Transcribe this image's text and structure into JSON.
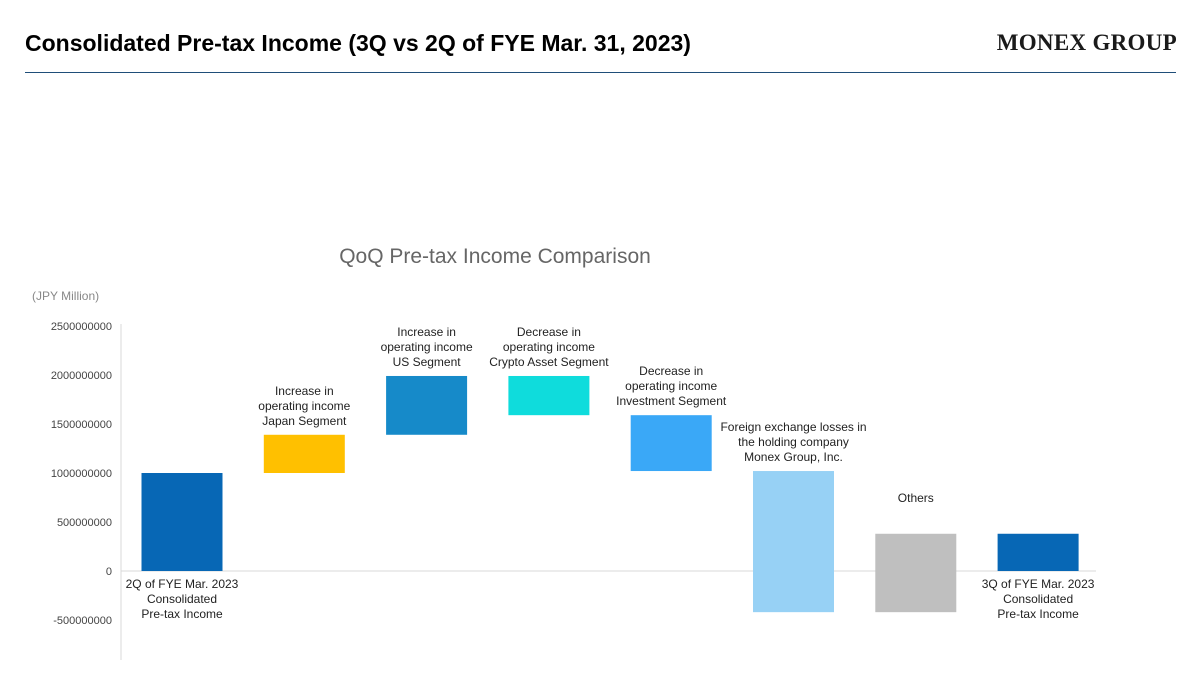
{
  "header": {
    "title": "Consolidated Pre-tax Income (3Q vs 2Q of FYE Mar. 31, 2023)",
    "logo_text": "MONEX GROUP"
  },
  "colors": {
    "rule": "#1f4e79",
    "title_gray": "#666666",
    "axis_text": "#444444",
    "label_text": "#222222"
  },
  "chart_data": {
    "type": "bar",
    "subtype": "waterfall",
    "title": "QoQ Pre-tax Income Comparison",
    "unit_label": "(JPY Million)",
    "ylim": [
      -900000000,
      2500000000
    ],
    "yticks": [
      2500000000,
      2000000000,
      1500000000,
      1000000000,
      500000000,
      0,
      -500000000
    ],
    "ytick_labels": [
      "2500000000",
      "2000000000",
      "1500000000",
      "1000000000",
      "500000000",
      "0",
      "-500000000"
    ],
    "grid": false,
    "bars": [
      {
        "label_lines": [
          "2Q of FYE Mar. 2023",
          "Consolidated",
          "Pre-tax Income"
        ],
        "label_pos": "below",
        "start": 0,
        "end": 1000000000,
        "color": "#0767b5"
      },
      {
        "label_lines": [
          "Increase in",
          "operating income",
          "Japan Segment"
        ],
        "label_pos": "above",
        "start": 1000000000,
        "end": 1390000000,
        "color": "#ffc000"
      },
      {
        "label_lines": [
          "Increase in",
          "operating income",
          "US Segment"
        ],
        "label_pos": "above",
        "start": 1390000000,
        "end": 1990000000,
        "color": "#168ac9"
      },
      {
        "label_lines": [
          "Decrease in",
          "operating income",
          "Crypto Asset Segment"
        ],
        "label_pos": "above",
        "start": 1990000000,
        "end": 1590000000,
        "color": "#0fdcdc"
      },
      {
        "label_lines": [
          "Decrease in",
          "operating income",
          "Investment Segment"
        ],
        "label_pos": "above",
        "start": 1590000000,
        "end": 1020000000,
        "color": "#3aa8f7"
      },
      {
        "label_lines": [
          "Foreign exchange losses in",
          "the holding company",
          "Monex Group, Inc."
        ],
        "label_pos": "above",
        "start": 1020000000,
        "end": -420000000,
        "color": "#97d1f5"
      },
      {
        "label_lines": [
          "Others"
        ],
        "label_pos": "above",
        "start": -420000000,
        "end": 380000000,
        "color": "#bfbfbf"
      },
      {
        "label_lines": [
          "3Q of FYE Mar. 2023",
          "Consolidated",
          "Pre-tax Income"
        ],
        "label_pos": "below",
        "start": 0,
        "end": 380000000,
        "color": "#0767b5"
      }
    ]
  }
}
